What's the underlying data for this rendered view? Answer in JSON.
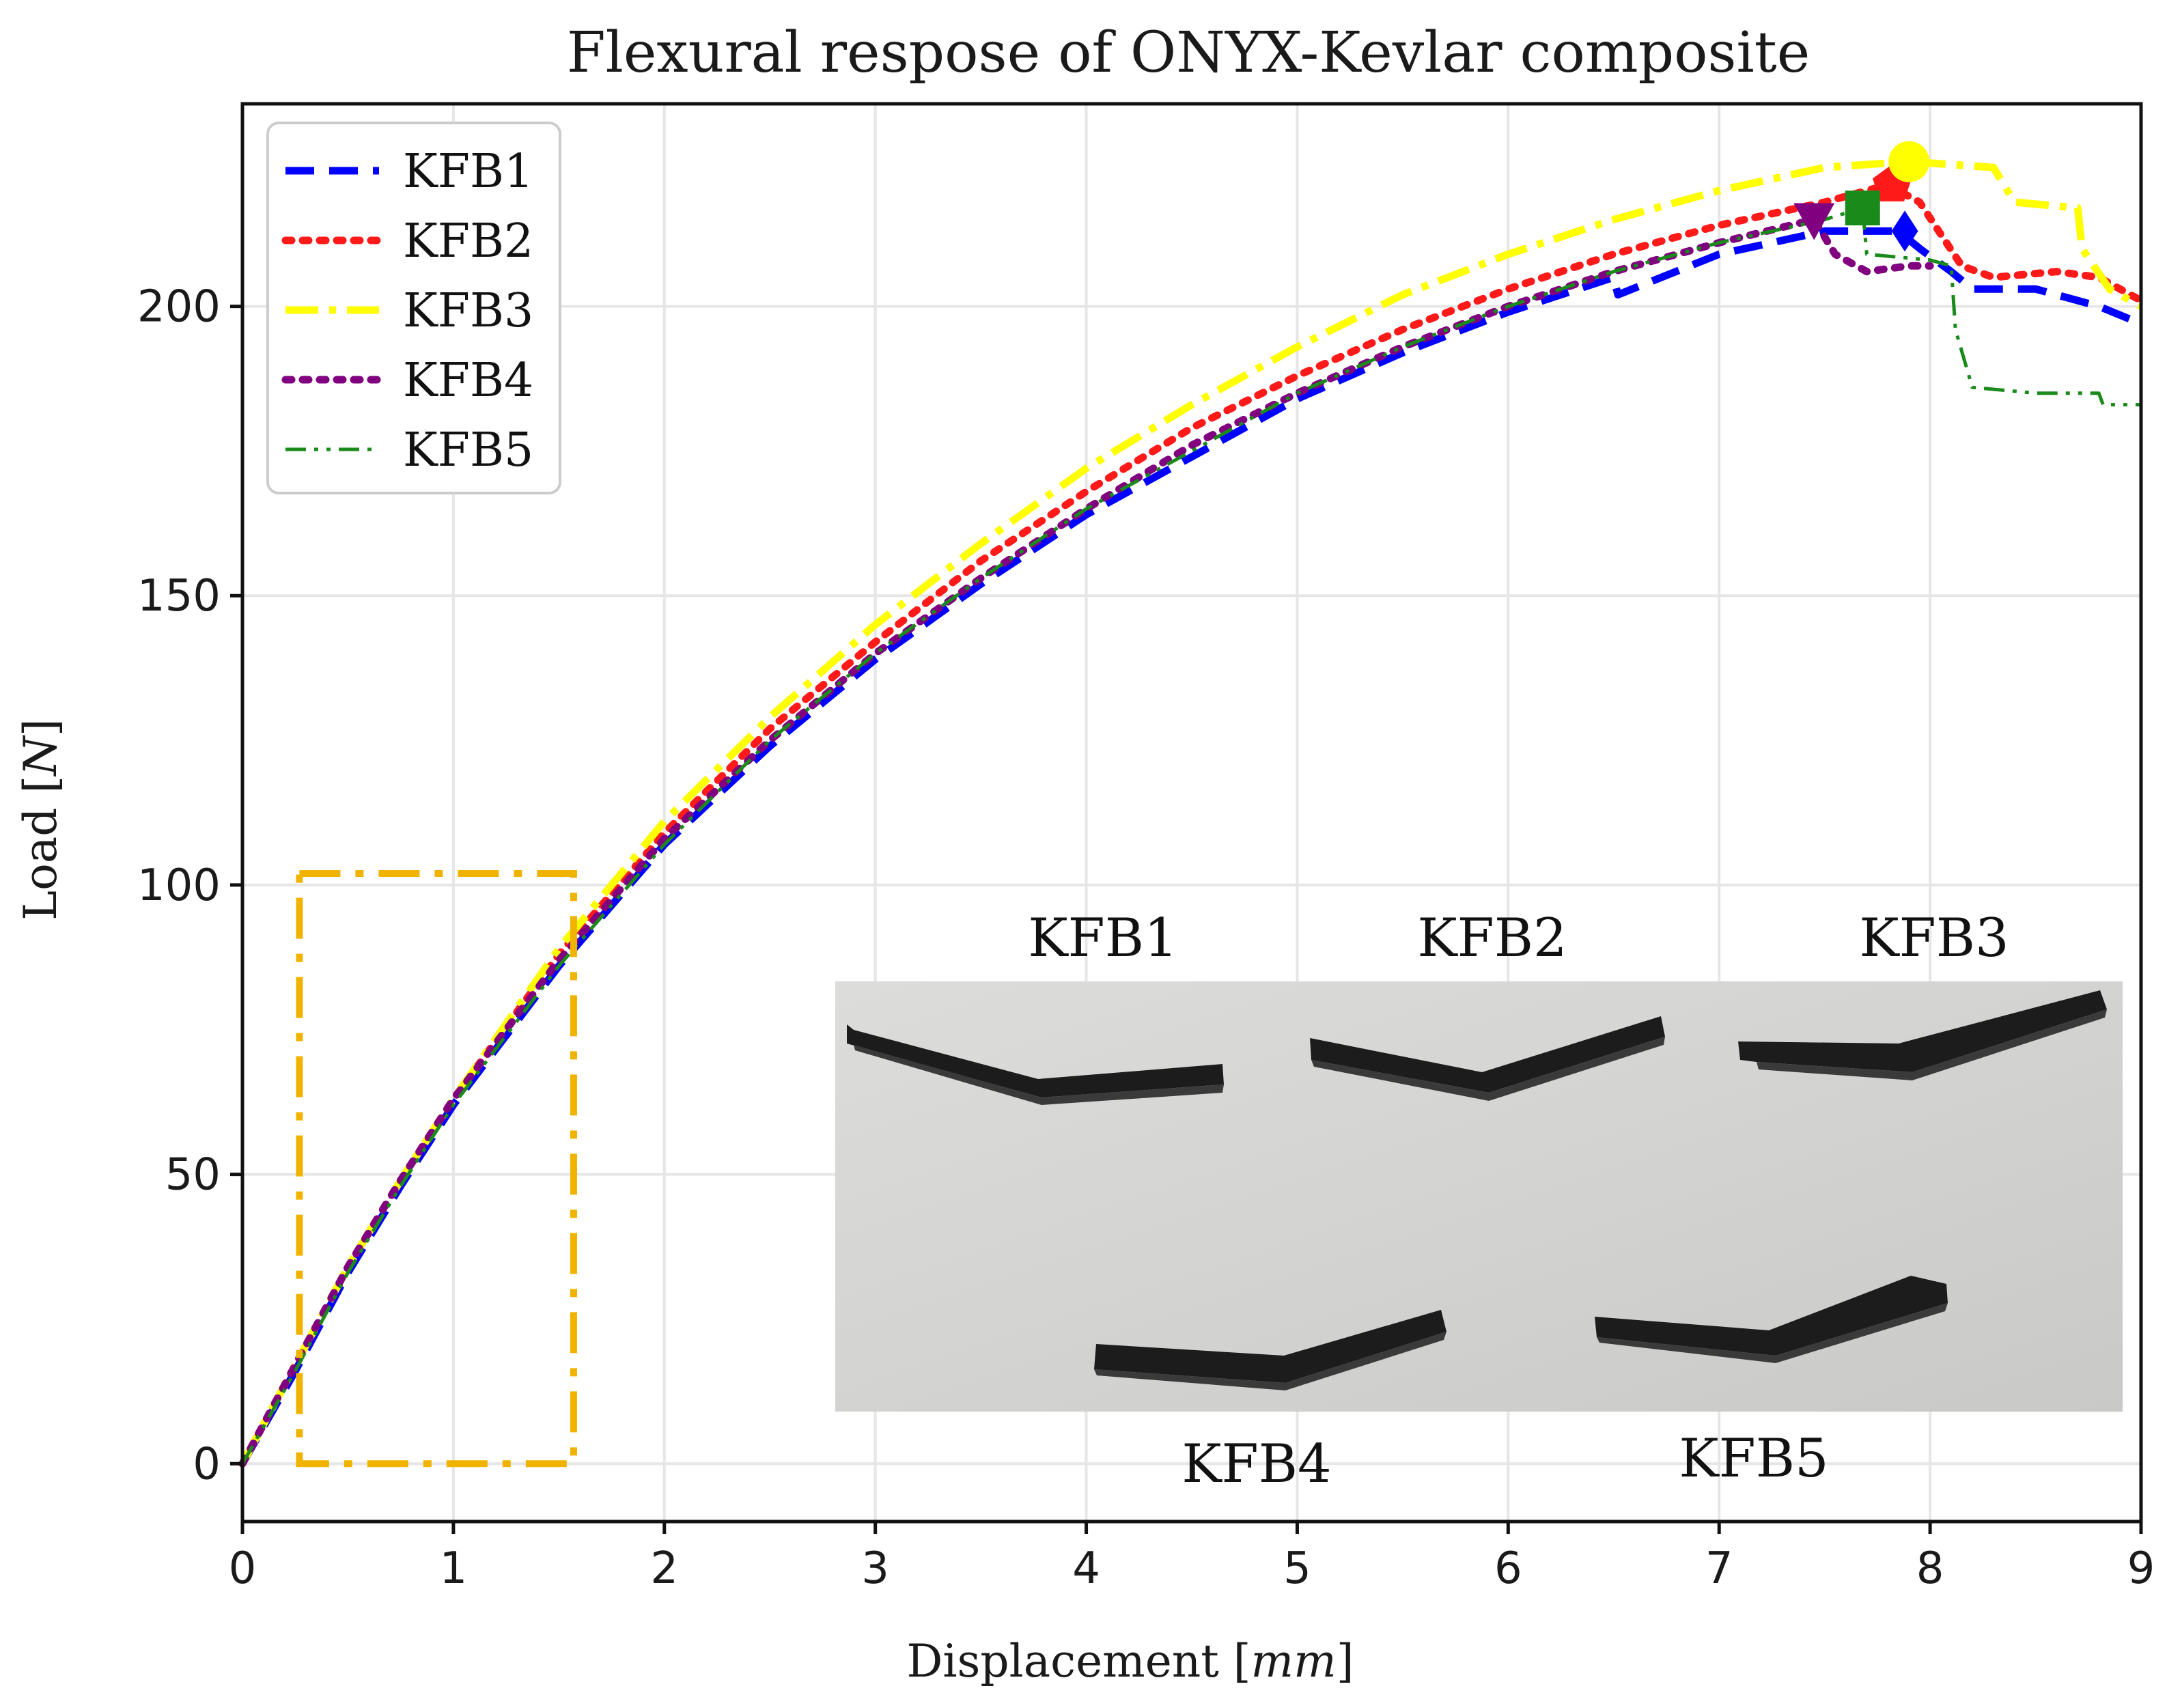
{
  "chart_data": {
    "type": "line",
    "title": "Flexural respose of ONYX-Kevlar composite",
    "xlabel": "Displacement [mm]",
    "ylabel": "Load [N]",
    "xlim": [
      0,
      9
    ],
    "ylim": [
      -10,
      235
    ],
    "xticks": [
      0,
      1,
      2,
      3,
      4,
      5,
      6,
      7,
      8,
      9
    ],
    "yticks": [
      0,
      50,
      100,
      150,
      200
    ],
    "grid": true,
    "legend_position": "top-left",
    "series": [
      {
        "name": "KFB1",
        "color": "#0000ff",
        "style": "dashed",
        "x": [
          0,
          0.25,
          0.5,
          0.75,
          1,
          1.5,
          2,
          2.5,
          3,
          3.5,
          4,
          4.5,
          5,
          5.5,
          6,
          6.5,
          6.52,
          7,
          7.5,
          7.85,
          7.95,
          8.1,
          8.2,
          8.5,
          8.8,
          9
        ],
        "y": [
          0,
          16,
          33,
          48,
          62,
          86,
          107,
          124,
          139,
          152,
          164,
          174,
          184,
          192,
          199,
          205,
          202,
          209,
          213,
          213,
          210,
          206,
          203,
          203,
          200,
          197
        ],
        "peak": {
          "x": 7.88,
          "y": 213,
          "marker": "diamond"
        }
      },
      {
        "name": "KFB2",
        "color": "#ff1a1a",
        "style": "dotted",
        "x": [
          0,
          0.25,
          0.5,
          0.75,
          1,
          1.5,
          2,
          2.5,
          3,
          3.5,
          4,
          4.5,
          5,
          5.5,
          6,
          6.5,
          7,
          7.5,
          7.8,
          7.95,
          8.15,
          8.3,
          8.6,
          8.8,
          9
        ],
        "y": [
          0,
          17,
          34,
          49,
          63,
          88,
          109,
          127,
          142,
          156,
          168,
          179,
          188,
          196,
          203,
          209,
          214,
          218,
          221,
          218,
          207,
          205,
          206,
          205,
          201
        ],
        "peak": {
          "x": 7.82,
          "y": 221,
          "marker": "pentagon"
        }
      },
      {
        "name": "KFB3",
        "color": "#ffff00",
        "style": "dashdot",
        "x": [
          0,
          0.25,
          0.5,
          0.75,
          1,
          1.5,
          2,
          2.5,
          3,
          3.5,
          4,
          4.5,
          5,
          5.5,
          6,
          6.5,
          7,
          7.5,
          7.9,
          8.3,
          8.4,
          8.7,
          8.72,
          8.85,
          9
        ],
        "y": [
          0,
          17,
          34,
          49,
          63,
          89,
          111,
          129,
          145,
          159,
          172,
          183,
          193,
          202,
          209,
          215,
          220,
          224,
          225,
          224,
          218,
          217,
          210,
          203,
          200
        ],
        "peak": {
          "x": 7.9,
          "y": 225,
          "marker": "circle"
        }
      },
      {
        "name": "KFB4",
        "color": "#800080",
        "style": "dotted",
        "x": [
          0,
          0.25,
          0.5,
          0.75,
          1,
          1.5,
          2,
          2.5,
          3,
          3.5,
          4,
          4.5,
          5,
          5.5,
          6,
          6.5,
          7,
          7.45,
          7.55,
          7.7,
          7.9,
          8.0
        ],
        "y": [
          0,
          17,
          34,
          49,
          63,
          87,
          108,
          125,
          140,
          153,
          165,
          176,
          185,
          193,
          200,
          206,
          211,
          215,
          209,
          206,
          207,
          207
        ],
        "peak": {
          "x": 7.45,
          "y": 215,
          "marker": "triangle-down"
        }
      },
      {
        "name": "KFB5",
        "color": "#1a8a1a",
        "style": "dashdotdot",
        "x": [
          0,
          0.25,
          0.5,
          0.75,
          1,
          1.5,
          2,
          2.5,
          3,
          3.5,
          4,
          4.5,
          5,
          5.5,
          6,
          6.5,
          7,
          7.5,
          7.68,
          7.7,
          8.0,
          8.1,
          8.12,
          8.2,
          8.5,
          8.8,
          8.82,
          9
        ],
        "y": [
          0,
          16,
          33,
          48,
          62,
          86,
          107,
          125,
          140,
          153,
          165,
          175,
          185,
          193,
          200,
          206,
          211,
          215,
          217,
          209,
          208,
          207,
          196,
          186,
          185,
          185,
          183,
          183
        ],
        "peak": {
          "x": 7.68,
          "y": 217,
          "marker": "square"
        }
      }
    ],
    "annotations": [
      {
        "type": "zoom-box",
        "x": [
          0.27,
          1.57
        ],
        "y": [
          0,
          102
        ],
        "color": "#f0b400"
      }
    ]
  },
  "inset_photo": {
    "labels": [
      "KFB1",
      "KFB2",
      "KFB3",
      "KFB4",
      "KFB5"
    ]
  }
}
